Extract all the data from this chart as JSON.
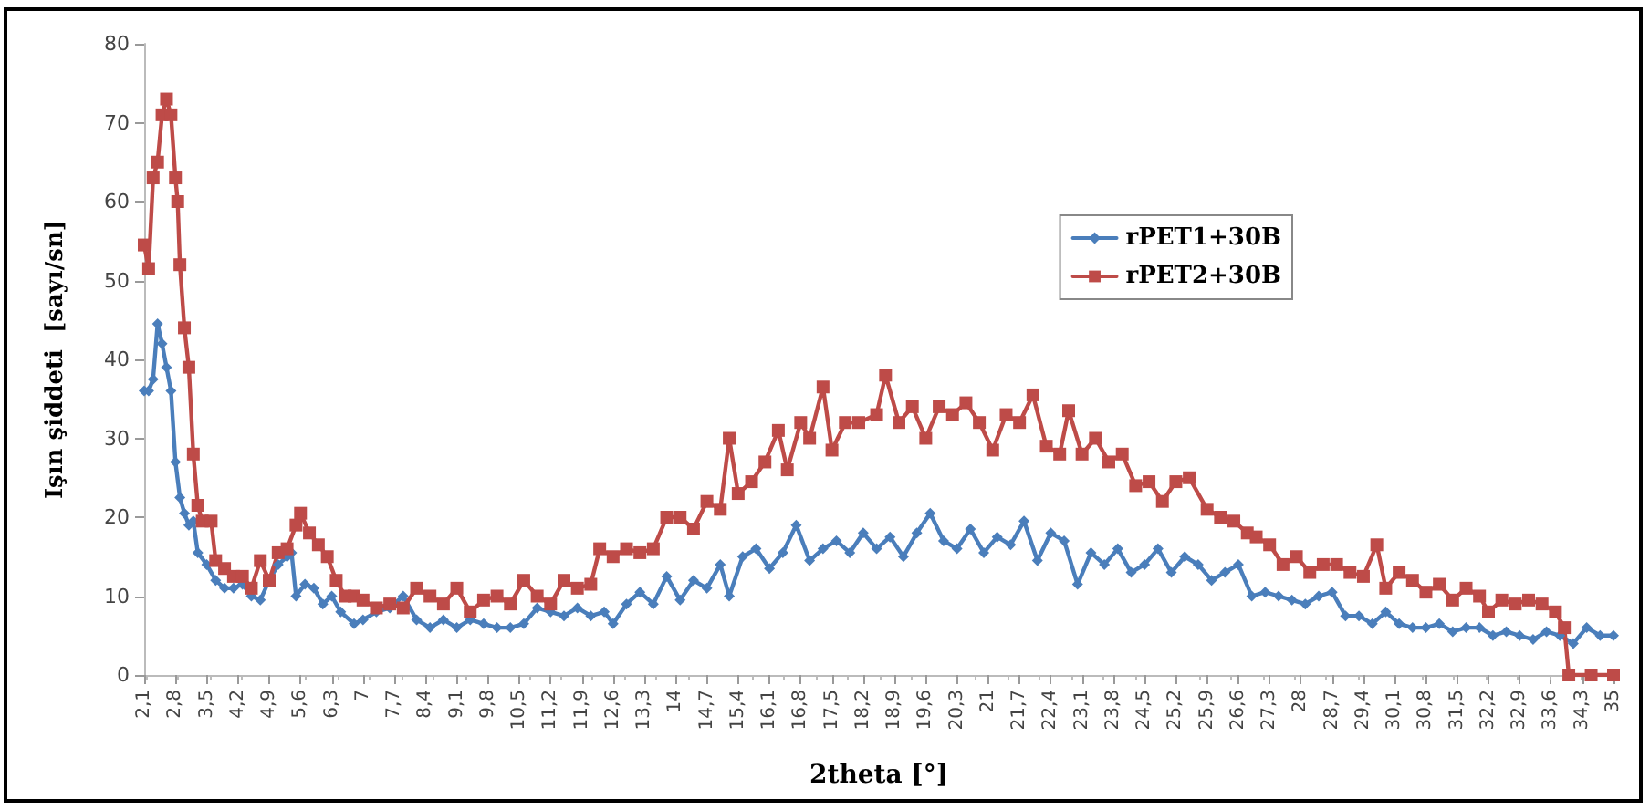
{
  "chart_data": {
    "type": "line",
    "xlabel": "2theta [°]",
    "ylabel": "Işın şiddeti  [sayı/sn]",
    "xlim": [
      2.1,
      35
    ],
    "ylim": [
      0,
      80
    ],
    "yticks": [
      0,
      10,
      20,
      30,
      40,
      50,
      60,
      70,
      80
    ],
    "xticks": [
      {
        "value": 2.1,
        "label": "2,1"
      },
      {
        "value": 2.8,
        "label": "2,8"
      },
      {
        "value": 3.5,
        "label": "3,5"
      },
      {
        "value": 4.2,
        "label": "4,2"
      },
      {
        "value": 4.9,
        "label": "4,9"
      },
      {
        "value": 5.6,
        "label": "5,6"
      },
      {
        "value": 6.3,
        "label": "6,3"
      },
      7,
      {
        "value": 7.7,
        "label": "7,7"
      },
      {
        "value": 8.4,
        "label": "8,4"
      },
      {
        "value": 9.1,
        "label": "9,1"
      },
      {
        "value": 9.8,
        "label": "9,8"
      },
      {
        "value": 10.5,
        "label": "10,5"
      },
      {
        "value": 11.2,
        "label": "11,2"
      },
      {
        "value": 11.9,
        "label": "11,9"
      },
      {
        "value": 12.6,
        "label": "12,6"
      },
      {
        "value": 13.3,
        "label": "13,3"
      },
      14,
      {
        "value": 14.7,
        "label": "14,7"
      },
      {
        "value": 15.4,
        "label": "15,4"
      },
      {
        "value": 16.1,
        "label": "16,1"
      },
      {
        "value": 16.8,
        "label": "16,8"
      },
      {
        "value": 17.5,
        "label": "17,5"
      },
      {
        "value": 18.2,
        "label": "18,2"
      },
      {
        "value": 18.9,
        "label": "18,9"
      },
      {
        "value": 19.6,
        "label": "19,6"
      },
      {
        "value": 20.3,
        "label": "20,3"
      },
      21,
      {
        "value": 21.7,
        "label": "21,7"
      },
      {
        "value": 22.4,
        "label": "22,4"
      },
      {
        "value": 23.1,
        "label": "23,1"
      },
      {
        "value": 23.8,
        "label": "23,8"
      },
      {
        "value": 24.5,
        "label": "24,5"
      },
      {
        "value": 25.2,
        "label": "25,2"
      },
      {
        "value": 25.9,
        "label": "25,9"
      },
      {
        "value": 26.6,
        "label": "26,6"
      },
      {
        "value": 27.3,
        "label": "27,3"
      },
      28,
      {
        "value": 28.7,
        "label": "28,7"
      },
      {
        "value": 29.4,
        "label": "29,4"
      },
      {
        "value": 30.1,
        "label": "30,1"
      },
      {
        "value": 30.8,
        "label": "30,8"
      },
      {
        "value": 31.5,
        "label": "31,5"
      },
      {
        "value": 32.2,
        "label": "32,2"
      },
      {
        "value": 32.9,
        "label": "32,9"
      },
      {
        "value": 33.6,
        "label": "33,6"
      },
      {
        "value": 34.3,
        "label": "34,3"
      },
      35
    ],
    "grid": false,
    "legend": "right",
    "line_style": "solid",
    "series": [
      {
        "name": "rPET1+30B",
        "color": "#4a7ebb",
        "marker": "diamond",
        "x": [
          2.1,
          2.2,
          2.3,
          2.4,
          2.5,
          2.6,
          2.7,
          2.8,
          2.9,
          3.0,
          3.1,
          3.2,
          3.3,
          3.5,
          3.7,
          3.9,
          4.1,
          4.3,
          4.5,
          4.7,
          4.9,
          5.1,
          5.3,
          5.4,
          5.5,
          5.7,
          5.9,
          6.1,
          6.3,
          6.5,
          6.8,
          7.0,
          7.3,
          7.6,
          7.9,
          8.2,
          8.5,
          8.8,
          9.1,
          9.4,
          9.7,
          10.0,
          10.3,
          10.6,
          10.9,
          11.2,
          11.5,
          11.8,
          12.1,
          12.4,
          12.6,
          12.9,
          13.2,
          13.5,
          13.8,
          14.1,
          14.4,
          14.7,
          15.0,
          15.2,
          15.5,
          15.8,
          16.1,
          16.4,
          16.7,
          17.0,
          17.3,
          17.6,
          17.9,
          18.2,
          18.5,
          18.8,
          19.1,
          19.4,
          19.7,
          20.0,
          20.3,
          20.6,
          20.9,
          21.2,
          21.5,
          21.8,
          22.1,
          22.4,
          22.7,
          23.0,
          23.3,
          23.6,
          23.9,
          24.2,
          24.5,
          24.8,
          25.1,
          25.4,
          25.7,
          26.0,
          26.3,
          26.6,
          26.9,
          27.2,
          27.5,
          27.8,
          28.1,
          28.4,
          28.7,
          29.0,
          29.3,
          29.6,
          29.9,
          30.2,
          30.5,
          30.8,
          31.1,
          31.4,
          31.7,
          32.0,
          32.3,
          32.6,
          32.9,
          33.2,
          33.5,
          33.8,
          34.1,
          34.4,
          34.7,
          35
        ],
        "values": [
          36,
          36,
          37.5,
          44.5,
          42,
          39,
          36,
          27,
          22.5,
          20.5,
          19,
          19.5,
          15.5,
          14,
          12,
          11,
          11,
          11.5,
          10,
          9.5,
          12,
          14,
          15,
          15.5,
          10,
          11.5,
          11,
          9,
          10,
          8,
          6.5,
          7,
          8,
          8.5,
          10,
          7,
          6,
          7,
          6,
          7,
          6.5,
          6,
          6,
          6.5,
          8.5,
          8,
          7.5,
          8.5,
          7.5,
          8,
          6.5,
          9,
          10.5,
          9,
          12.5,
          9.5,
          12,
          11,
          14,
          10,
          15,
          16,
          13.5,
          15.5,
          19,
          14.5,
          16,
          17,
          15.5,
          18,
          16,
          17.5,
          15,
          18,
          20.5,
          17,
          16,
          18.5,
          15.5,
          17.5,
          16.5,
          19.5,
          14.5,
          18,
          17,
          11.5,
          15.5,
          14,
          16,
          13,
          14,
          16,
          13,
          15,
          14,
          12,
          13,
          14,
          10,
          10.5,
          10,
          9.5,
          9,
          10,
          10.5,
          7.5,
          7.5,
          6.5,
          8,
          6.5,
          6,
          6,
          6.5,
          5.5,
          6,
          6,
          5,
          5.5,
          5,
          4.5,
          5.5,
          5,
          4,
          6,
          5,
          5
        ]
      },
      {
        "name": "rPET2+30B",
        "color": "#be4b48",
        "marker": "square",
        "x": [
          2.1,
          2.2,
          2.3,
          2.4,
          2.5,
          2.6,
          2.7,
          2.8,
          2.85,
          2.9,
          3.0,
          3.1,
          3.2,
          3.3,
          3.4,
          3.6,
          3.7,
          3.9,
          4.1,
          4.3,
          4.5,
          4.7,
          4.9,
          5.1,
          5.3,
          5.5,
          5.6,
          5.8,
          6.0,
          6.2,
          6.4,
          6.6,
          6.8,
          7.0,
          7.3,
          7.6,
          7.9,
          8.2,
          8.5,
          8.8,
          9.1,
          9.4,
          9.7,
          10.0,
          10.3,
          10.6,
          10.9,
          11.2,
          11.5,
          11.8,
          12.1,
          12.3,
          12.6,
          12.9,
          13.2,
          13.5,
          13.8,
          14.1,
          14.4,
          14.7,
          15.0,
          15.2,
          15.4,
          15.7,
          16.0,
          16.3,
          16.5,
          16.8,
          17.0,
          17.3,
          17.5,
          17.8,
          18.1,
          18.5,
          18.7,
          19.0,
          19.3,
          19.6,
          19.9,
          20.2,
          20.5,
          20.8,
          21.1,
          21.4,
          21.7,
          22.0,
          22.3,
          22.6,
          22.8,
          23.1,
          23.4,
          23.7,
          24.0,
          24.3,
          24.6,
          24.9,
          25.2,
          25.5,
          25.9,
          26.2,
          26.5,
          26.8,
          27.0,
          27.3,
          27.6,
          27.9,
          28.2,
          28.5,
          28.8,
          29.1,
          29.4,
          29.7,
          29.9,
          30.2,
          30.5,
          30.8,
          31.1,
          31.4,
          31.7,
          32.0,
          32.2,
          32.5,
          32.8,
          33.1,
          33.4,
          33.7,
          33.9,
          34.0,
          34.5,
          35
        ],
        "values": [
          54.5,
          51.5,
          63,
          65,
          71,
          73,
          71,
          63,
          60,
          52,
          44,
          39,
          28,
          21.5,
          19.5,
          19.5,
          14.5,
          13.5,
          12.5,
          12.5,
          11,
          14.5,
          12,
          15.5,
          16,
          19,
          20.5,
          18,
          16.5,
          15,
          12,
          10,
          10,
          9.5,
          8.5,
          9,
          8.5,
          11,
          10,
          9,
          11,
          8,
          9.5,
          10,
          9,
          12,
          10,
          9,
          12,
          11,
          11.5,
          16,
          15,
          16,
          15.5,
          16,
          20,
          20,
          18.5,
          22,
          21,
          30,
          23,
          24.5,
          27,
          31,
          26,
          32,
          30,
          36.5,
          28.5,
          32,
          32,
          33,
          38,
          32,
          34,
          30,
          34,
          33,
          34.5,
          32,
          28.5,
          33,
          32,
          35.5,
          29,
          28,
          33.5,
          28,
          30,
          27,
          28,
          24,
          24.5,
          22,
          24.5,
          25,
          21,
          20,
          19.5,
          18,
          17.5,
          16.5,
          14,
          15,
          13,
          14,
          14,
          13,
          12.5,
          16.5,
          11,
          13,
          12,
          10.5,
          11.5,
          9.5,
          11,
          10,
          8,
          9.5,
          9,
          9.5,
          9,
          8,
          6,
          0,
          0,
          0
        ]
      }
    ]
  }
}
